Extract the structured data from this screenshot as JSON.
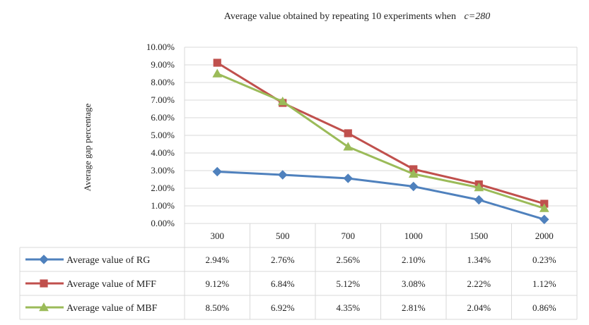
{
  "chart_data": {
    "type": "line",
    "title_main": "Average value obtained by repeating 10 experiments when",
    "title_param": "c=280",
    "ylabel": "Average gap percentage",
    "xlabel": "",
    "categories": [
      "300",
      "500",
      "700",
      "1000",
      "1500",
      "2000"
    ],
    "y_ticks": [
      "10.00%",
      "9.00%",
      "8.00%",
      "7.00%",
      "6.00%",
      "5.00%",
      "4.00%",
      "3.00%",
      "2.00%",
      "1.00%",
      "0.00%"
    ],
    "ylim": [
      0,
      10
    ],
    "grid": true,
    "legend_placement": "data-table",
    "series": [
      {
        "name": "Average value of RG",
        "color": "#4f81bd",
        "marker": "diamond",
        "values": [
          2.94,
          2.76,
          2.56,
          2.1,
          1.34,
          0.23
        ],
        "labels": [
          "2.94%",
          "2.76%",
          "2.56%",
          "2.10%",
          "1.34%",
          "0.23%"
        ]
      },
      {
        "name": "Average value of MFF",
        "color": "#c0504d",
        "marker": "square",
        "values": [
          9.12,
          6.84,
          5.12,
          3.08,
          2.22,
          1.12
        ],
        "labels": [
          "9.12%",
          "6.84%",
          "5.12%",
          "3.08%",
          "2.22%",
          "1.12%"
        ]
      },
      {
        "name": "Average value of MBF",
        "color": "#9bbb59",
        "marker": "triangle",
        "values": [
          8.5,
          6.92,
          4.35,
          2.81,
          2.04,
          0.86
        ],
        "labels": [
          "8.50%",
          "6.92%",
          "4.35%",
          "2.81%",
          "2.04%",
          "0.86%"
        ]
      }
    ]
  }
}
